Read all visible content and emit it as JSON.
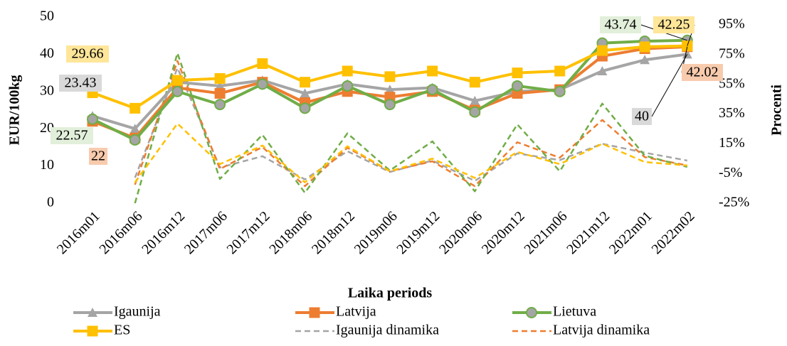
{
  "chart_data": {
    "type": "line",
    "y_label": "EUR/100kg",
    "y2_label": "Procenti",
    "x_label": "Laika periods",
    "categories": [
      "2016m01",
      "2016m06",
      "2016m12",
      "2017m06",
      "2017m12",
      "2018m06",
      "2018m12",
      "2019m06",
      "2019m12",
      "2020m06",
      "2020m12",
      "2021m06",
      "2021m12",
      "2022m01",
      "2022m02"
    ],
    "ylim": [
      0,
      50
    ],
    "yticks": [
      0,
      10,
      20,
      30,
      40,
      50
    ],
    "y2lim": [
      -25,
      95
    ],
    "y2ticks": [
      {
        "value": -25,
        "label": "-25%"
      },
      {
        "value": -5,
        "label": "-5%"
      },
      {
        "value": 15,
        "label": "15%"
      },
      {
        "value": 35,
        "label": "35%"
      },
      {
        "value": 55,
        "label": "55%"
      },
      {
        "value": 75,
        "label": "75%"
      },
      {
        "value": 95,
        "label": "95%"
      }
    ],
    "series": [
      {
        "name": "Igaunija",
        "color": "#a5a5a5",
        "marker": "triangle",
        "values": [
          23.43,
          20,
          32.5,
          31.5,
          33,
          29.5,
          32,
          30.5,
          31,
          27.5,
          30,
          30.5,
          35.5,
          38.5,
          40
        ]
      },
      {
        "name": "Latvija",
        "color": "#ed7d31",
        "marker": "square",
        "values": [
          22,
          17.5,
          31,
          29.5,
          32.5,
          27,
          30,
          28.5,
          30,
          25,
          29.5,
          30.5,
          39.5,
          41.5,
          42.02
        ]
      },
      {
        "name": "Lietuva",
        "color": "#70ad47",
        "marker": "circle",
        "values": [
          22.57,
          17,
          30,
          26.5,
          32,
          25.5,
          31.5,
          26.5,
          30.5,
          24.5,
          31.5,
          30,
          43,
          43.5,
          43.74
        ]
      },
      {
        "name": "ES",
        "color": "#ffc000",
        "marker": "square",
        "values": [
          29.66,
          25.5,
          33,
          33.5,
          37.5,
          32.5,
          35.5,
          34,
          35.5,
          32.5,
          35,
          35.5,
          41,
          42,
          42.25
        ]
      },
      {
        "name": "Igaunija dinamika",
        "color": "#a5a5a5",
        "dashed": true,
        "axis": "y2",
        "values": [
          null,
          -7.8,
          66,
          -1,
          6.6,
          -9,
          10,
          -4,
          3.7,
          -10,
          8.5,
          4,
          15,
          9,
          3.7
        ]
      },
      {
        "name": "Latvija dinamika",
        "color": "#ed7d31",
        "dashed": true,
        "axis": "y2",
        "values": [
          null,
          -12.5,
          70.7,
          -2,
          12.8,
          -13.5,
          12.3,
          -3.5,
          3.2,
          -13.5,
          16,
          5.6,
          31,
          6,
          0.4
        ]
      },
      {
        "color": "#70ad47",
        "dashed": true,
        "axis": "y2",
        "values": [
          null,
          -25,
          76,
          -8.7,
          21,
          -18,
          22,
          -3,
          16.6,
          -17,
          28,
          -3.5,
          42,
          7,
          -0.6
        ]
      },
      {
        "color": "#ffc000",
        "dashed": true,
        "axis": "y2",
        "values": [
          null,
          -11,
          28.6,
          1.3,
          13.8,
          -11,
          13.3,
          -3.5,
          5,
          -8,
          9.5,
          1.3,
          15,
          2.7,
          0.4
        ]
      }
    ]
  }
}
